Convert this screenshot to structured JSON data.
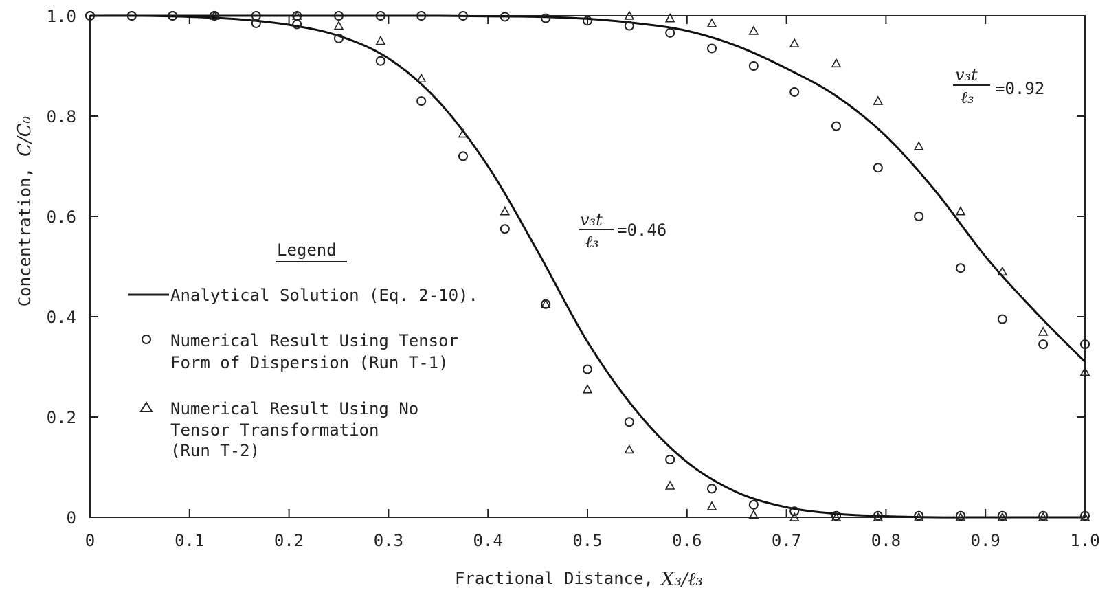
{
  "chart_data": {
    "type": "scatter",
    "xlabel": "Fractional Distance,",
    "xlabel_symbol": "X₃/ℓ₃",
    "ylabel": "Concentration,",
    "ylabel_symbol": "C/C₀",
    "xlim": [
      0,
      1.0
    ],
    "ylim": [
      0,
      1.0
    ],
    "x_ticks": [
      "0",
      "0.1",
      "0.2",
      "0.3",
      "0.4",
      "0.5",
      "0.6",
      "0.7",
      "0.8",
      "0.9",
      "1.0"
    ],
    "y_ticks": [
      "0",
      "0.2",
      "0.4",
      "0.6",
      "0.8",
      "1.0"
    ],
    "grid": false,
    "legend": {
      "title": "Legend",
      "placement": "center-left",
      "entries": [
        {
          "marker": "line",
          "lines": [
            "Analytical Solution (Eq. 2-10)."
          ]
        },
        {
          "marker": "circle",
          "lines": [
            "Numerical Result Using Tensor",
            "Form of Dispersion (Run T-1)"
          ]
        },
        {
          "marker": "triangle",
          "lines": [
            "Numerical Result Using No",
            "Tensor Transformation",
            "(Run T-2)"
          ]
        }
      ]
    },
    "annotations": [
      {
        "numerator": "v₃t",
        "denominator": "ℓ₃",
        "value": "=0.46"
      },
      {
        "numerator": "v₃t",
        "denominator": "ℓ₃",
        "value": "=0.92"
      }
    ],
    "series": [
      {
        "kind": "analytical",
        "marker": "line",
        "x": [
          0,
          0.05,
          0.1,
          0.15,
          0.2,
          0.25,
          0.3,
          0.35,
          0.4,
          0.45,
          0.5,
          0.55,
          0.6,
          0.65,
          0.7,
          0.75,
          0.8,
          0.85,
          0.9,
          0.95,
          1.0
        ],
        "y": [
          1.0,
          1.0,
          0.998,
          0.993,
          0.982,
          0.96,
          0.915,
          0.83,
          0.7,
          0.53,
          0.35,
          0.21,
          0.11,
          0.05,
          0.02,
          0.007,
          0.002,
          0.0,
          0.0,
          0.0,
          0.0
        ]
      },
      {
        "kind": "analytical",
        "marker": "line",
        "x": [
          0,
          0.1,
          0.2,
          0.3,
          0.35,
          0.4,
          0.45,
          0.5,
          0.55,
          0.6,
          0.65,
          0.7,
          0.75,
          0.8,
          0.85,
          0.9,
          0.95,
          1.0
        ],
        "y": [
          1.0,
          1.0,
          1.0,
          1.0,
          1.0,
          0.999,
          0.998,
          0.994,
          0.985,
          0.97,
          0.94,
          0.895,
          0.84,
          0.76,
          0.65,
          0.52,
          0.41,
          0.31
        ]
      },
      {
        "kind": "run-t1",
        "marker": "circle",
        "x": [
          0,
          0.042,
          0.083,
          0.125,
          0.167,
          0.208,
          0.25,
          0.292,
          0.333,
          0.375,
          0.417,
          0.458,
          0.5,
          0.542,
          0.583,
          0.625,
          0.667,
          0.708,
          0.75,
          0.792,
          0.833,
          0.875,
          0.917,
          0.958,
          1.0
        ],
        "y": [
          1.0,
          1.0,
          1.0,
          1.0,
          0.985,
          0.983,
          0.955,
          0.91,
          0.83,
          0.72,
          0.575,
          0.425,
          0.295,
          0.19,
          0.115,
          0.057,
          0.025,
          0.012,
          0.003,
          0.003,
          0.003,
          0.003,
          0.003,
          0.003,
          0.003
        ]
      },
      {
        "kind": "run-t1",
        "marker": "circle",
        "x": [
          0,
          0.042,
          0.083,
          0.125,
          0.167,
          0.208,
          0.25,
          0.292,
          0.333,
          0.375,
          0.417,
          0.458,
          0.5,
          0.542,
          0.583,
          0.625,
          0.667,
          0.708,
          0.75,
          0.792,
          0.833,
          0.875,
          0.917,
          0.958,
          1.0
        ],
        "y": [
          1.0,
          1.0,
          1.0,
          1.0,
          1.0,
          1.0,
          1.0,
          1.0,
          1.0,
          1.0,
          0.998,
          0.995,
          0.99,
          0.98,
          0.966,
          0.935,
          0.9,
          0.848,
          0.78,
          0.697,
          0.6,
          0.497,
          0.395,
          0.345,
          0.345
        ]
      },
      {
        "kind": "run-t2",
        "marker": "triangle",
        "x": [
          0.125,
          0.208,
          0.25,
          0.292,
          0.333,
          0.375,
          0.417,
          0.458,
          0.5,
          0.542,
          0.583,
          0.625,
          0.667,
          0.708,
          0.75,
          0.792,
          0.833,
          0.875,
          0.917,
          0.958,
          1.0
        ],
        "y": [
          1.0,
          1.0,
          0.98,
          0.95,
          0.875,
          0.765,
          0.61,
          0.425,
          0.255,
          0.135,
          0.063,
          0.022,
          0.005,
          0.0,
          0.0,
          0.0,
          0.0,
          0.0,
          0.0,
          0.0,
          0.0
        ]
      },
      {
        "kind": "run-t2",
        "marker": "triangle",
        "x": [
          0.542,
          0.583,
          0.625,
          0.667,
          0.708,
          0.75,
          0.792,
          0.833,
          0.875,
          0.917,
          0.958,
          1.0
        ],
        "y": [
          1.0,
          0.995,
          0.985,
          0.97,
          0.945,
          0.905,
          0.83,
          0.74,
          0.61,
          0.49,
          0.37,
          0.29
        ]
      }
    ]
  }
}
